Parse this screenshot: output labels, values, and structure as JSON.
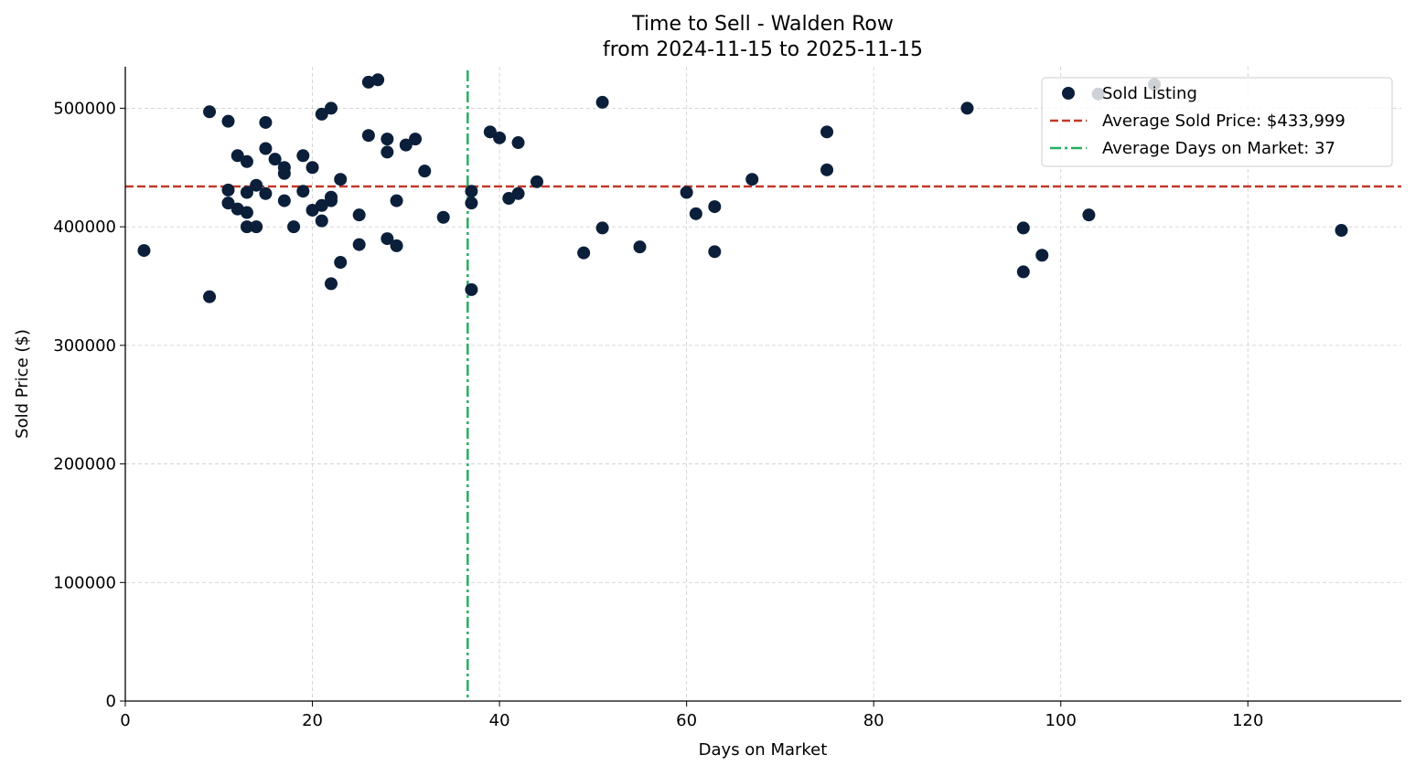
{
  "chart_data": {
    "type": "scatter",
    "title": "Time to Sell - Walden Row",
    "subtitle": "from 2024-11-15 to 2025-11-15",
    "xlabel": "Days on Market",
    "ylabel": "Sold Price ($)",
    "xlim": [
      0,
      136.4
    ],
    "ylim": [
      0,
      535000
    ],
    "xticks": [
      0,
      20,
      40,
      60,
      80,
      100,
      120
    ],
    "yticks": [
      0,
      100000,
      200000,
      300000,
      400000,
      500000
    ],
    "grid": true,
    "legend_placement": "top-right",
    "colors": {
      "points": "#0b1f3a",
      "avg_price": "#c0392b",
      "avg_days": "#27ae60"
    },
    "series": [
      {
        "name": "Sold Listing",
        "points": [
          [
            2,
            380000
          ],
          [
            9,
            497000
          ],
          [
            9,
            341000
          ],
          [
            11,
            489000
          ],
          [
            11,
            431000
          ],
          [
            11,
            420000
          ],
          [
            12,
            460000
          ],
          [
            12,
            415000
          ],
          [
            13,
            455000
          ],
          [
            13,
            429000
          ],
          [
            13,
            412000
          ],
          [
            13,
            400000
          ],
          [
            14,
            435000
          ],
          [
            14,
            400000
          ],
          [
            15,
            488000
          ],
          [
            15,
            466000
          ],
          [
            15,
            428000
          ],
          [
            16,
            457000
          ],
          [
            17,
            450000
          ],
          [
            17,
            445000
          ],
          [
            17,
            422000
          ],
          [
            18,
            400000
          ],
          [
            19,
            460000
          ],
          [
            19,
            430000
          ],
          [
            20,
            450000
          ],
          [
            20,
            414000
          ],
          [
            21,
            495000
          ],
          [
            21,
            418000
          ],
          [
            21,
            405000
          ],
          [
            22,
            500000
          ],
          [
            22,
            425000
          ],
          [
            22,
            422000
          ],
          [
            22,
            352000
          ],
          [
            23,
            440000
          ],
          [
            23,
            370000
          ],
          [
            25,
            410000
          ],
          [
            25,
            385000
          ],
          [
            26,
            522000
          ],
          [
            26,
            477000
          ],
          [
            27,
            524000
          ],
          [
            28,
            474000
          ],
          [
            28,
            463000
          ],
          [
            28,
            390000
          ],
          [
            29,
            422000
          ],
          [
            29,
            384000
          ],
          [
            30,
            469000
          ],
          [
            31,
            474000
          ],
          [
            32,
            447000
          ],
          [
            34,
            408000
          ],
          [
            37,
            430000
          ],
          [
            37,
            420000
          ],
          [
            37,
            347000
          ],
          [
            39,
            480000
          ],
          [
            40,
            475000
          ],
          [
            41,
            424000
          ],
          [
            42,
            471000
          ],
          [
            42,
            428000
          ],
          [
            44,
            438000
          ],
          [
            49,
            378000
          ],
          [
            51,
            505000
          ],
          [
            51,
            399000
          ],
          [
            55,
            383000
          ],
          [
            60,
            429000
          ],
          [
            61,
            411000
          ],
          [
            63,
            417000
          ],
          [
            63,
            379000
          ],
          [
            67,
            440000
          ],
          [
            75,
            480000
          ],
          [
            75,
            448000
          ],
          [
            90,
            500000
          ],
          [
            96,
            399000
          ],
          [
            96,
            362000
          ],
          [
            98,
            376000
          ],
          [
            103,
            410000
          ],
          [
            104,
            512000
          ],
          [
            110,
            520000
          ],
          [
            130,
            397000
          ]
        ]
      }
    ],
    "avg_price_value": 433999,
    "avg_days_value": 36.6,
    "legend": [
      "Sold Listing",
      "Average Sold Price: $433,999",
      "Average Days on Market: 37"
    ]
  }
}
